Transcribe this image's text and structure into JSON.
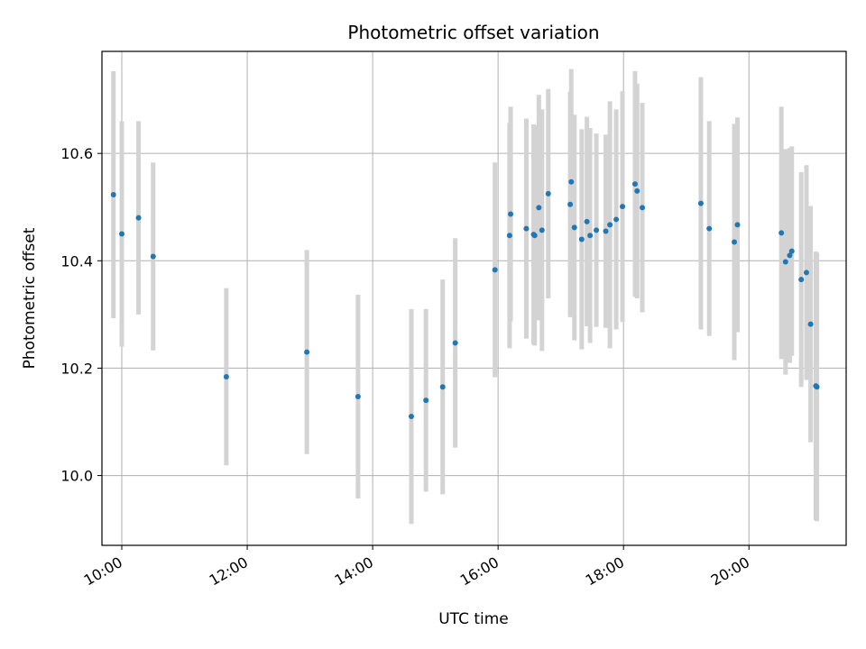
{
  "chart_data": {
    "type": "scatter",
    "title": "Photometric offset variation",
    "xlabel": "UTC time",
    "ylabel": "Photometric offset",
    "x_ticks": [
      "10:00",
      "12:00",
      "14:00",
      "16:00",
      "18:00",
      "20:00"
    ],
    "y_ticks": [
      "10.0",
      "10.2",
      "10.4",
      "10.6"
    ],
    "xlim": [
      "09:41",
      "21:33"
    ],
    "ylim": [
      9.87,
      10.79
    ],
    "grid": true,
    "point_color": "#1f77b4",
    "errorbar_color": "#d3d3d3",
    "series": [
      {
        "x": [
          "09:52",
          "10:00",
          "10:16",
          "10:30",
          "11:40",
          "12:57",
          "13:46",
          "14:37",
          "14:51",
          "15:07",
          "15:19",
          "15:57",
          "16:11",
          "16:12",
          "16:27",
          "16:34",
          "16:35",
          "16:39",
          "16:42",
          "16:48",
          "17:09",
          "17:10",
          "17:13",
          "17:20",
          "17:25",
          "17:28",
          "17:34",
          "17:43",
          "17:47",
          "17:53",
          "17:59",
          "18:11",
          "18:13",
          "18:18",
          "19:14",
          "19:22",
          "19:46",
          "19:49",
          "20:31",
          "20:35",
          "20:39",
          "20:41",
          "20:50",
          "20:55",
          "20:59",
          "21:04",
          "21:05"
        ],
        "y": [
          10.523,
          10.45,
          10.48,
          10.408,
          10.184,
          10.23,
          10.147,
          10.11,
          10.14,
          10.165,
          10.247,
          10.383,
          10.447,
          10.487,
          10.46,
          10.449,
          10.447,
          10.499,
          10.457,
          10.525,
          10.505,
          10.547,
          10.462,
          10.44,
          10.473,
          10.447,
          10.457,
          10.455,
          10.467,
          10.477,
          10.501,
          10.543,
          10.53,
          10.499,
          10.507,
          10.46,
          10.435,
          10.467,
          10.452,
          10.398,
          10.41,
          10.418,
          10.365,
          10.378,
          10.282,
          10.167,
          10.165
        ],
        "err": [
          0.23,
          0.21,
          0.18,
          0.175,
          0.165,
          0.19,
          0.19,
          0.2,
          0.17,
          0.2,
          0.195,
          0.2,
          0.21,
          0.2,
          0.205,
          0.205,
          0.205,
          0.21,
          0.225,
          0.195,
          0.21,
          0.21,
          0.21,
          0.205,
          0.195,
          0.2,
          0.18,
          0.18,
          0.23,
          0.205,
          0.215,
          0.21,
          0.2,
          0.195,
          0.235,
          0.2,
          0.22,
          0.2,
          0.235,
          0.21,
          0.2,
          0.195,
          0.2,
          0.2,
          0.22,
          0.25,
          0.25
        ]
      }
    ]
  }
}
